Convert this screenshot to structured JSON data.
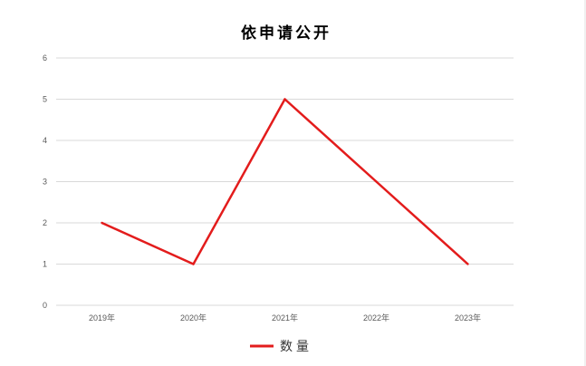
{
  "chart_data": {
    "type": "line",
    "title": "依申请公开",
    "xlabel": "",
    "ylabel": "",
    "categories": [
      "2019年",
      "2020年",
      "2021年",
      "2022年",
      "2023年"
    ],
    "series": [
      {
        "name": "数量",
        "values": [
          2,
          1,
          5,
          3,
          1
        ],
        "color": "#e31c1c"
      }
    ],
    "ylim": [
      0,
      6
    ],
    "yticks": [
      "0",
      "1",
      "2",
      "3",
      "4",
      "5",
      "6"
    ],
    "grid": true,
    "legend": "bottom"
  }
}
